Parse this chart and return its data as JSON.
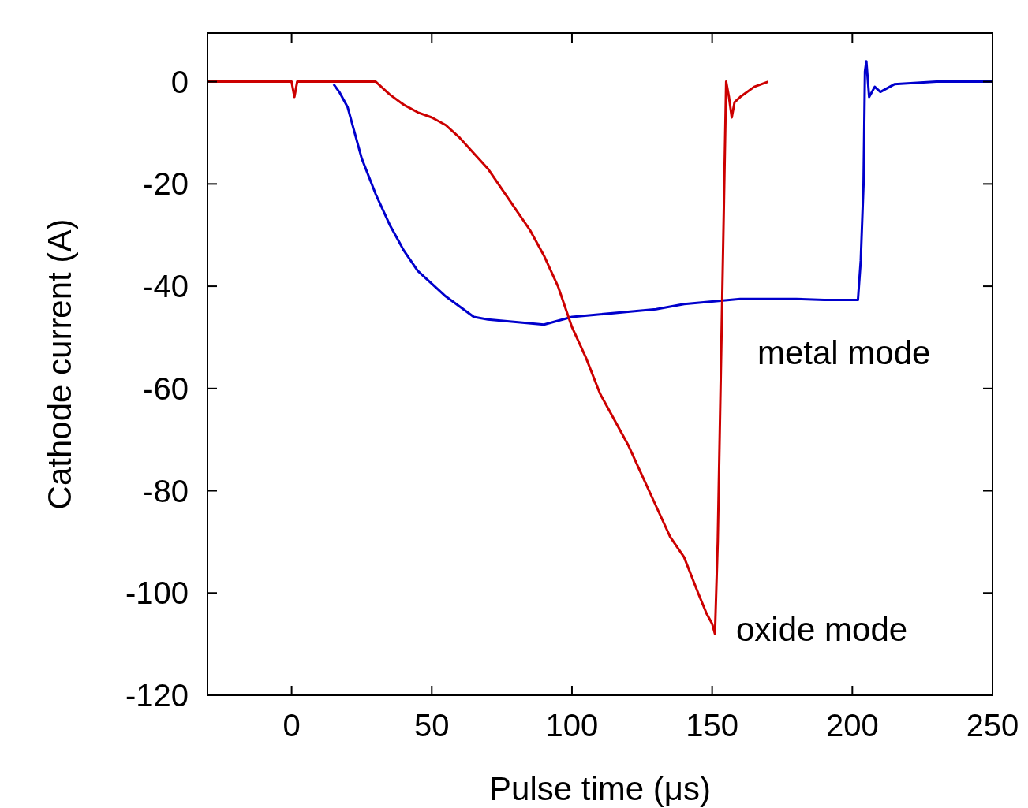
{
  "chart_data": {
    "type": "line",
    "xlabel": "Pulse time (μs)",
    "ylabel": "Cathode current (A)",
    "xlim": [
      -30,
      250
    ],
    "ylim": [
      -120,
      9.5
    ],
    "xticks": [
      0,
      50,
      100,
      150,
      200,
      250
    ],
    "yticks": [
      -120,
      -100,
      -80,
      -60,
      -40,
      -20,
      0
    ],
    "grid": false,
    "marker": "none",
    "line_style": "solid",
    "annotations": [
      "metal mode",
      "oxide mode"
    ],
    "series": [
      {
        "color": "#0000cc",
        "x": [
          15,
          17,
          20,
          25,
          30,
          35,
          40,
          45,
          50,
          55,
          60,
          65,
          70,
          80,
          90,
          100,
          110,
          120,
          130,
          140,
          150,
          160,
          170,
          180,
          190,
          202,
          203,
          204,
          204.5,
          205,
          206,
          208,
          210,
          215,
          230,
          250
        ],
        "values": [
          -0.5,
          -2,
          -5,
          -15,
          -22,
          -28,
          -33,
          -37,
          -39.5,
          -42,
          -44,
          -46,
          -46.5,
          -47,
          -47.5,
          -46,
          -45.5,
          -45,
          -44.5,
          -43.5,
          -43,
          -42.5,
          -42.5,
          -42.5,
          -42.7,
          -42.7,
          -35,
          -20,
          2,
          4,
          -3,
          -1,
          -2,
          -0.5,
          0,
          0
        ]
      },
      {
        "color": "#cc0000",
        "x": [
          -30,
          -20,
          -10,
          0,
          1,
          2,
          10,
          20,
          30,
          35,
          40,
          45,
          50,
          55,
          60,
          65,
          70,
          75,
          80,
          85,
          90,
          95,
          100,
          105,
          110,
          115,
          120,
          125,
          130,
          135,
          140,
          145,
          148,
          150,
          151,
          152,
          153,
          154,
          155,
          156,
          157,
          158,
          160,
          165,
          170
        ],
        "values": [
          0,
          0,
          0,
          0,
          -3,
          0,
          0,
          0,
          0,
          -2.5,
          -4.5,
          -6,
          -7,
          -8.5,
          -11,
          -14,
          -17,
          -21,
          -25,
          -29,
          -34,
          -40,
          -48,
          -54,
          -61,
          -66,
          -71,
          -77,
          -83,
          -89,
          -93,
          -100,
          -104,
          -106,
          -108,
          -90,
          -60,
          -30,
          0,
          -3,
          -7,
          -4,
          -3,
          -1,
          0
        ]
      }
    ]
  }
}
